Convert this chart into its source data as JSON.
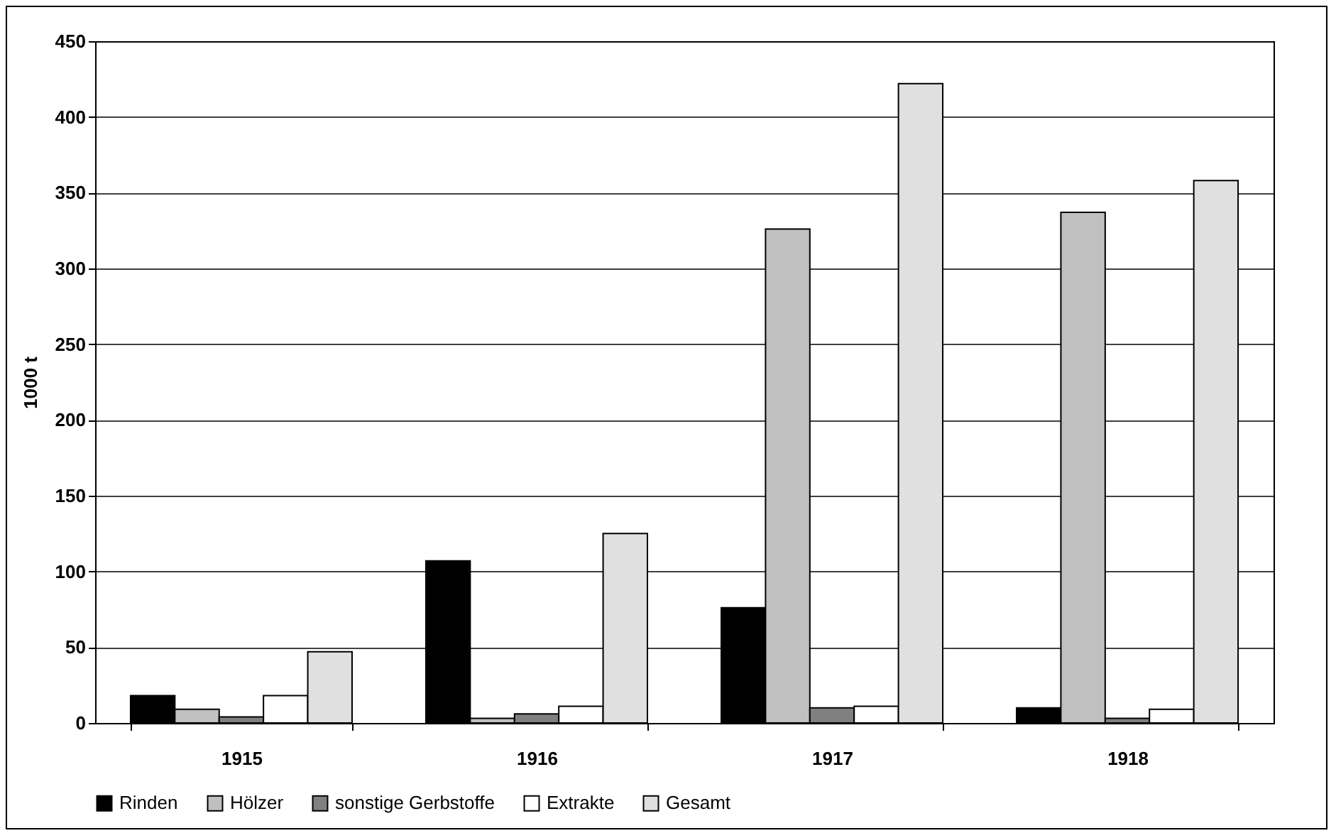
{
  "chart_data": {
    "type": "bar",
    "ylabel": "1000 t",
    "categories": [
      "1915",
      "1916",
      "1917",
      "1918"
    ],
    "series": [
      {
        "name": "Rinden",
        "color": "#000000",
        "values": [
          18,
          107,
          76,
          10
        ]
      },
      {
        "name": "Hölzer",
        "color": "#c0c0c0",
        "values": [
          9,
          3,
          326,
          337
        ]
      },
      {
        "name": "sonstige Gerbstoffe",
        "color": "#808080",
        "values": [
          4,
          6,
          10,
          3
        ]
      },
      {
        "name": "Extrakte",
        "color": "#ffffff",
        "values": [
          18,
          11,
          11,
          9
        ]
      },
      {
        "name": "Gesamt",
        "color": "#e0e0e0",
        "values": [
          47,
          125,
          422,
          358
        ]
      }
    ],
    "ylim": [
      0,
      450
    ],
    "yticks": [
      0,
      50,
      100,
      150,
      200,
      250,
      300,
      350,
      400,
      450
    ],
    "grid": "y",
    "legend": "bottom"
  }
}
